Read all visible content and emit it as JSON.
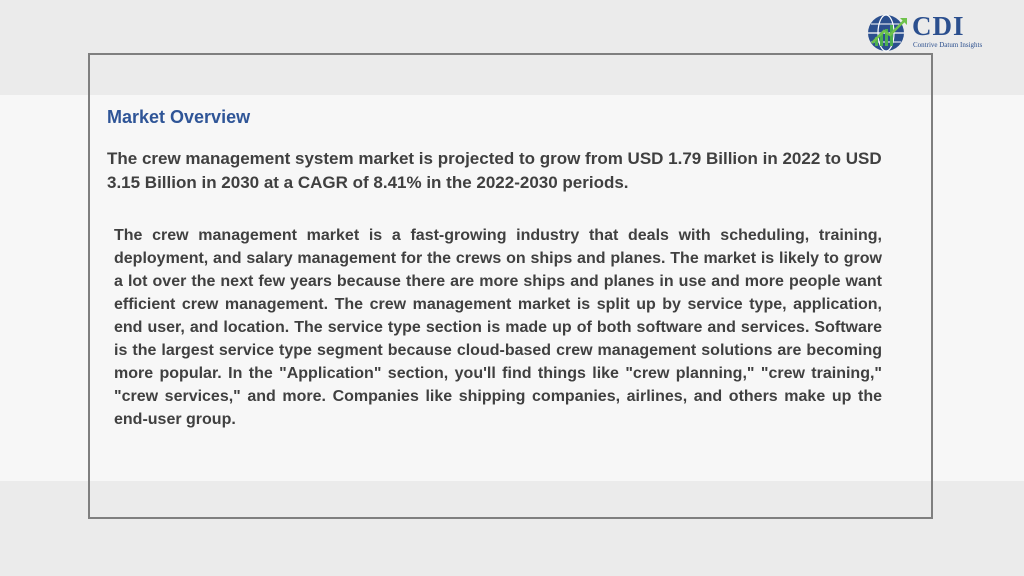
{
  "logo": {
    "name": "CDI",
    "tagline": "Contrive Datum Insights",
    "icon": "globe-chart-icon"
  },
  "section": {
    "title": "Market Overview",
    "lead": "The crew management system market is projected to grow from USD 1.79 Billion in 2022 to USD 3.15 Billion in 2030 at a CAGR of 8.41% in the 2022-2030 periods.",
    "body": "The crew management market is a fast-growing industry that deals with scheduling, training, deployment, and salary management for the crews on ships and planes. The market is likely to grow a lot over the next few years because there are more ships and planes in use and more people want efficient crew management. The crew management market is split up by service type, application, end user, and location. The service type section is made up of both software and services. Software is the largest service type segment because cloud-based crew management solutions are becoming more popular. In the \"Application\" section, you'll find things like \"crew planning,\" \"crew training,\" \"crew services,\" and more. Companies like shipping companies, airlines, and others make up the end-user group."
  },
  "colors": {
    "accent": "#2f5597",
    "text": "#404040",
    "frame": "#7f7f7f",
    "band": "#ebebeb"
  }
}
